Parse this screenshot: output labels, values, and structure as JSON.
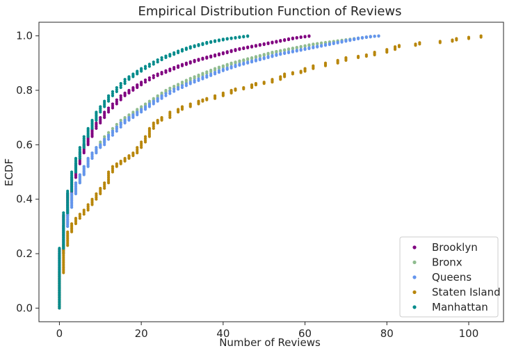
{
  "chart_data": {
    "type": "scatter",
    "title": "Empirical Distribution Function of Reviews",
    "xlabel": "Number of Reviews",
    "ylabel": "ECDF",
    "xlim": [
      -5,
      108.5
    ],
    "ylim": [
      -0.05,
      1.05
    ],
    "xticks": [
      0,
      20,
      40,
      60,
      80,
      100
    ],
    "yticks": [
      0.0,
      0.2,
      0.4,
      0.6,
      0.8,
      1.0
    ],
    "xtick_labels": [
      "0",
      "20",
      "40",
      "60",
      "80",
      "100"
    ],
    "ytick_labels": [
      "0.0",
      "0.2",
      "0.4",
      "0.6",
      "0.8",
      "1.0"
    ],
    "grid": false,
    "legend_position": "bottom-right",
    "series": [
      {
        "name": "Brooklyn",
        "color": "#800080",
        "x": [
          0,
          1,
          2,
          3,
          4,
          5,
          6,
          7,
          8,
          9,
          10,
          11,
          12,
          13,
          14,
          15,
          16,
          17,
          18,
          19,
          20,
          21,
          22,
          23,
          24,
          25,
          26,
          27,
          28,
          29,
          30,
          31,
          32,
          33,
          34,
          35,
          36,
          37,
          38,
          39,
          40,
          41,
          42,
          43,
          44,
          45,
          46,
          47,
          48,
          49,
          50,
          51,
          52,
          53,
          54,
          55,
          56,
          57,
          58,
          59,
          60,
          61
        ],
        "y": [
          0.215,
          0.34,
          0.42,
          0.48,
          0.53,
          0.57,
          0.6,
          0.63,
          0.66,
          0.68,
          0.7,
          0.72,
          0.735,
          0.75,
          0.765,
          0.78,
          0.79,
          0.8,
          0.81,
          0.82,
          0.83,
          0.838,
          0.846,
          0.854,
          0.86,
          0.866,
          0.872,
          0.878,
          0.884,
          0.89,
          0.895,
          0.9,
          0.905,
          0.91,
          0.914,
          0.918,
          0.922,
          0.926,
          0.93,
          0.934,
          0.938,
          0.942,
          0.946,
          0.95,
          0.953,
          0.956,
          0.959,
          0.962,
          0.965,
          0.968,
          0.971,
          0.974,
          0.977,
          0.98,
          0.983,
          0.986,
          0.989,
          0.992,
          0.994,
          0.996,
          0.998,
          1.0
        ]
      },
      {
        "name": "Bronx",
        "color": "#8fbc8f",
        "x": [
          0,
          1,
          2,
          3,
          4,
          5,
          6,
          7,
          8,
          9,
          10,
          11,
          12,
          13,
          14,
          15,
          16,
          17,
          18,
          19,
          20,
          21,
          22,
          23,
          24,
          25,
          26,
          27,
          28,
          29,
          30,
          31,
          32,
          33,
          34,
          35,
          36,
          37,
          38,
          39,
          40,
          41,
          42,
          43,
          44,
          45,
          46,
          47,
          48,
          49,
          50,
          51,
          52,
          53,
          54,
          55,
          56,
          57,
          58,
          59,
          60,
          61,
          62,
          63,
          64,
          65,
          66,
          67,
          68,
          69,
          70,
          71,
          72,
          73,
          74,
          75,
          76,
          77,
          78
        ],
        "y": [
          0.2,
          0.3,
          0.37,
          0.42,
          0.46,
          0.49,
          0.52,
          0.55,
          0.57,
          0.59,
          0.61,
          0.63,
          0.645,
          0.66,
          0.675,
          0.69,
          0.7,
          0.71,
          0.72,
          0.73,
          0.74,
          0.75,
          0.76,
          0.77,
          0.78,
          0.79,
          0.8,
          0.808,
          0.815,
          0.822,
          0.83,
          0.837,
          0.844,
          0.85,
          0.856,
          0.862,
          0.868,
          0.874,
          0.88,
          0.885,
          0.89,
          0.895,
          0.9,
          0.904,
          0.908,
          0.912,
          0.916,
          0.92,
          0.924,
          0.928,
          0.932,
          0.936,
          0.94,
          0.943,
          0.946,
          0.949,
          0.952,
          0.955,
          0.958,
          0.961,
          0.964,
          0.967,
          0.97,
          0.972,
          0.974,
          0.976,
          0.978,
          0.98,
          0.982,
          0.984,
          0.986,
          0.988,
          0.99,
          0.992,
          0.994,
          0.996,
          0.998,
          0.999,
          1.0
        ]
      },
      {
        "name": "Queens",
        "color": "#6495ed",
        "x": [
          0,
          1,
          2,
          3,
          4,
          5,
          6,
          7,
          8,
          9,
          10,
          11,
          12,
          13,
          14,
          15,
          16,
          17,
          18,
          19,
          20,
          21,
          22,
          23,
          24,
          25,
          26,
          27,
          28,
          29,
          30,
          31,
          32,
          33,
          34,
          35,
          36,
          37,
          38,
          39,
          40,
          41,
          42,
          43,
          44,
          45,
          46,
          47,
          48,
          49,
          50,
          51,
          52,
          53,
          54,
          55,
          56,
          57,
          58,
          59,
          60,
          61,
          62,
          63,
          64,
          65,
          66,
          67,
          68,
          69,
          70,
          71,
          72,
          73,
          74,
          75,
          76,
          77,
          78
        ],
        "y": [
          0.2,
          0.3,
          0.37,
          0.42,
          0.46,
          0.49,
          0.52,
          0.55,
          0.57,
          0.59,
          0.6,
          0.62,
          0.635,
          0.65,
          0.665,
          0.68,
          0.69,
          0.7,
          0.71,
          0.72,
          0.73,
          0.74,
          0.75,
          0.76,
          0.77,
          0.78,
          0.788,
          0.796,
          0.804,
          0.81,
          0.817,
          0.824,
          0.83,
          0.836,
          0.842,
          0.848,
          0.854,
          0.86,
          0.866,
          0.872,
          0.877,
          0.882,
          0.887,
          0.892,
          0.896,
          0.9,
          0.904,
          0.908,
          0.912,
          0.916,
          0.92,
          0.924,
          0.928,
          0.932,
          0.935,
          0.938,
          0.941,
          0.944,
          0.947,
          0.95,
          0.953,
          0.956,
          0.959,
          0.962,
          0.965,
          0.968,
          0.971,
          0.974,
          0.977,
          0.98,
          0.983,
          0.986,
          0.989,
          0.992,
          0.994,
          0.996,
          0.998,
          0.999,
          1.0
        ]
      },
      {
        "name": "Staten Island",
        "color": "#b8860b",
        "x": [
          0,
          1,
          2,
          3,
          4,
          5,
          6,
          7,
          8,
          9,
          10,
          11,
          12,
          13,
          14,
          15,
          16,
          17,
          18,
          19,
          20,
          21,
          22,
          23,
          24,
          25,
          27,
          29,
          30,
          32,
          34,
          35,
          36,
          38,
          40,
          42,
          43,
          45,
          47,
          48,
          50,
          52,
          54,
          55,
          57,
          59,
          60,
          62,
          65,
          68,
          70,
          73,
          75,
          77,
          80,
          82,
          83,
          87,
          88,
          93,
          96,
          97,
          100,
          103
        ],
        "y": [
          0.13,
          0.23,
          0.28,
          0.31,
          0.33,
          0.345,
          0.36,
          0.38,
          0.4,
          0.42,
          0.44,
          0.46,
          0.5,
          0.52,
          0.53,
          0.54,
          0.55,
          0.56,
          0.57,
          0.59,
          0.61,
          0.63,
          0.66,
          0.68,
          0.69,
          0.7,
          0.72,
          0.73,
          0.74,
          0.75,
          0.76,
          0.765,
          0.77,
          0.78,
          0.79,
          0.8,
          0.805,
          0.81,
          0.82,
          0.825,
          0.83,
          0.84,
          0.85,
          0.86,
          0.865,
          0.87,
          0.88,
          0.89,
          0.9,
          0.91,
          0.92,
          0.925,
          0.93,
          0.94,
          0.95,
          0.96,
          0.965,
          0.97,
          0.975,
          0.98,
          0.985,
          0.99,
          0.995,
          1.0
        ]
      },
      {
        "name": "Manhattan",
        "color": "#008b8b",
        "x": [
          0,
          1,
          2,
          3,
          4,
          5,
          6,
          7,
          8,
          9,
          10,
          11,
          12,
          13,
          14,
          15,
          16,
          17,
          18,
          19,
          20,
          21,
          22,
          23,
          24,
          25,
          26,
          27,
          28,
          29,
          30,
          31,
          32,
          33,
          34,
          35,
          36,
          37,
          38,
          39,
          40,
          41,
          42,
          43,
          44,
          45,
          46
        ],
        "y": [
          0.22,
          0.35,
          0.43,
          0.5,
          0.55,
          0.59,
          0.63,
          0.66,
          0.69,
          0.72,
          0.74,
          0.76,
          0.78,
          0.795,
          0.81,
          0.825,
          0.84,
          0.85,
          0.86,
          0.87,
          0.88,
          0.888,
          0.896,
          0.904,
          0.912,
          0.92,
          0.926,
          0.932,
          0.938,
          0.944,
          0.95,
          0.955,
          0.96,
          0.964,
          0.968,
          0.972,
          0.976,
          0.979,
          0.982,
          0.985,
          0.988,
          0.99,
          0.992,
          0.994,
          0.996,
          0.998,
          1.0
        ]
      }
    ]
  }
}
